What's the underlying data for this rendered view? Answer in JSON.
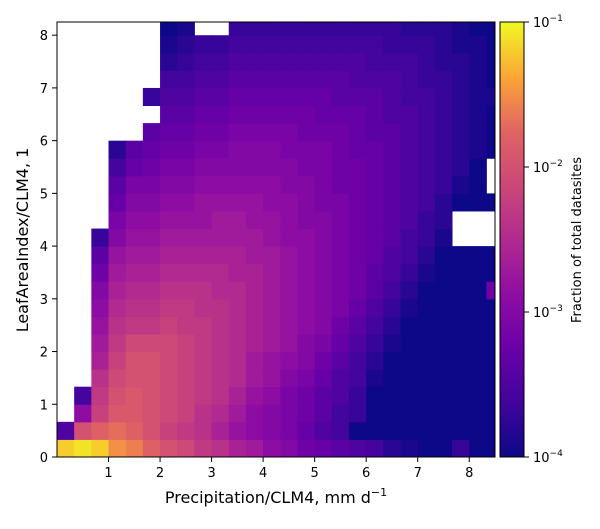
{
  "chart_data": {
    "type": "heatmap",
    "xlabel": "Precipitation/CLM4,  mm d",
    "xlabel_superscript": "−1",
    "ylabel": "LeafAreaIndex/CLM4,  1",
    "colorbar_label": "Fraction of total datasites",
    "colormap": "plasma",
    "colorbar_scale": "log",
    "xlim": [
      0,
      8.5
    ],
    "ylim": [
      0,
      8.25
    ],
    "x_ticks": [
      "1",
      "2",
      "3",
      "4",
      "5",
      "6",
      "7",
      "8"
    ],
    "y_ticks": [
      "0",
      "1",
      "2",
      "3",
      "4",
      "5",
      "6",
      "7",
      "8"
    ],
    "colorbar_ticks": [
      {
        "base": "10",
        "exp": "−4",
        "value": 0.0001
      },
      {
        "base": "10",
        "exp": "−3",
        "value": 0.001
      },
      {
        "base": "10",
        "exp": "−2",
        "value": 0.01
      },
      {
        "base": "10",
        "exp": "−1",
        "value": 0.1
      }
    ],
    "clim": [
      0.0001,
      0.1
    ],
    "bins": {
      "x_start": 0,
      "x_step": 0.3333,
      "nx": 26,
      "y_start": 0,
      "y_step": 0.3333,
      "ny": 25
    },
    "cells_log10_fraction": [
      [
        -1.2,
        -1.1,
        -1.2,
        -1.5,
        -1.6,
        -1.8,
        -2.0,
        -2.1,
        -2.3,
        -2.4,
        -2.6,
        -2.7,
        -2.9,
        -3.0,
        -3.2,
        -3.3,
        -3.4,
        -3.5,
        -3.6,
        -3.8,
        -3.9,
        -4.0,
        -4.0,
        -3.7,
        -4.0,
        -4.0
      ],
      [
        -3.5,
        -2.0,
        -1.8,
        -1.7,
        -1.8,
        -2.0,
        -2.2,
        -2.3,
        -2.4,
        -2.6,
        -2.8,
        -2.9,
        -3.0,
        -3.1,
        -3.3,
        -3.5,
        -3.6,
        -4.0,
        -4.0,
        -4.0,
        -4.0,
        -4.0,
        -4.0,
        -4.0,
        -4.0,
        -4.0
      ],
      [
        null,
        -2.9,
        -2.2,
        -1.9,
        -1.9,
        -2.0,
        -2.1,
        -2.2,
        -2.4,
        -2.5,
        -2.7,
        -2.9,
        -3.0,
        -3.1,
        -3.2,
        -3.4,
        -3.6,
        -3.7,
        -4.0,
        -4.0,
        -4.0,
        -4.0,
        -4.0,
        -4.0,
        -4.0,
        -4.0
      ],
      [
        null,
        -3.6,
        -2.3,
        -2.0,
        -1.9,
        -2.0,
        -2.1,
        -2.2,
        -2.3,
        -2.4,
        -2.6,
        -2.8,
        -2.9,
        -3.1,
        -3.2,
        -3.4,
        -3.5,
        -3.7,
        -4.0,
        -4.0,
        -4.0,
        -4.0,
        -4.0,
        -4.0,
        -4.0,
        -4.0
      ],
      [
        null,
        null,
        -2.4,
        -2.1,
        -2.0,
        -2.0,
        -2.1,
        -2.2,
        -2.3,
        -2.4,
        -2.5,
        -2.7,
        -2.8,
        -3.0,
        -3.1,
        -3.3,
        -3.5,
        -3.6,
        -3.9,
        -4.0,
        -4.0,
        -4.0,
        -4.0,
        -4.0,
        -4.0,
        -4.0
      ],
      [
        null,
        null,
        -2.6,
        -2.2,
        -2.0,
        -2.0,
        -2.1,
        -2.2,
        -2.3,
        -2.4,
        -2.5,
        -2.7,
        -2.8,
        -2.9,
        -3.0,
        -3.2,
        -3.4,
        -3.6,
        -3.8,
        -4.0,
        -4.0,
        -4.0,
        -4.0,
        -4.0,
        -4.0,
        -4.0
      ],
      [
        null,
        null,
        -2.7,
        -2.3,
        -2.1,
        -2.1,
        -2.1,
        -2.2,
        -2.3,
        -2.4,
        -2.5,
        -2.6,
        -2.7,
        -2.8,
        -3.0,
        -3.1,
        -3.3,
        -3.5,
        -3.7,
        -3.9,
        -4.0,
        -4.0,
        -4.0,
        -4.0,
        -4.0,
        -4.0
      ],
      [
        null,
        null,
        -2.8,
        -2.4,
        -2.3,
        -2.3,
        -2.2,
        -2.3,
        -2.3,
        -2.4,
        -2.5,
        -2.6,
        -2.7,
        -2.8,
        -2.9,
        -3.0,
        -3.2,
        -3.4,
        -3.6,
        -3.8,
        -4.0,
        -4.0,
        -4.0,
        -4.0,
        -4.0,
        -4.0
      ],
      [
        null,
        null,
        -2.9,
        -2.5,
        -2.4,
        -2.4,
        -2.3,
        -2.3,
        -2.4,
        -2.4,
        -2.5,
        -2.6,
        -2.7,
        -2.8,
        -2.9,
        -3.0,
        -3.1,
        -3.3,
        -3.5,
        -3.7,
        -3.9,
        -4.0,
        -4.0,
        -4.0,
        -4.0,
        -4.0
      ],
      [
        null,
        null,
        -3.0,
        -2.6,
        -2.5,
        -2.5,
        -2.4,
        -2.4,
        -2.4,
        -2.5,
        -2.5,
        -2.6,
        -2.7,
        -2.8,
        -2.9,
        -3.0,
        -3.1,
        -3.2,
        -3.4,
        -3.6,
        -3.8,
        -4.0,
        -4.0,
        -4.0,
        -4.0,
        -3.2
      ],
      [
        null,
        null,
        -3.2,
        -2.7,
        -2.6,
        -2.6,
        -2.5,
        -2.5,
        -2.5,
        -2.5,
        -2.6,
        -2.6,
        -2.7,
        -2.8,
        -2.9,
        -3.0,
        -3.1,
        -3.2,
        -3.4,
        -3.5,
        -3.7,
        -3.9,
        -4.0,
        -4.0,
        -4.0,
        -4.0
      ],
      [
        null,
        null,
        -3.4,
        -2.8,
        -2.7,
        -2.7,
        -2.6,
        -2.6,
        -2.6,
        -2.6,
        -2.6,
        -2.7,
        -2.7,
        -2.8,
        -2.9,
        -3.0,
        -3.1,
        -3.2,
        -3.3,
        -3.5,
        -3.6,
        -3.8,
        -4.0,
        -4.0,
        -4.0,
        -4.0
      ],
      [
        null,
        null,
        -3.7,
        -3.0,
        -2.8,
        -2.8,
        -2.7,
        -2.7,
        -2.7,
        -2.7,
        -2.7,
        -2.7,
        -2.8,
        -2.9,
        -2.9,
        -3.0,
        -3.1,
        -3.2,
        -3.3,
        -3.4,
        -3.6,
        -3.7,
        -3.9,
        null,
        null,
        null
      ],
      [
        null,
        null,
        null,
        -3.1,
        -2.9,
        -2.9,
        -2.8,
        -2.8,
        -2.8,
        -2.7,
        -2.7,
        -2.8,
        -2.8,
        -2.9,
        -3.0,
        -3.0,
        -3.1,
        -3.2,
        -3.3,
        -3.4,
        -3.5,
        -3.7,
        -3.8,
        null,
        null,
        null
      ],
      [
        null,
        null,
        null,
        -3.3,
        -3.0,
        -3.0,
        -2.9,
        -2.9,
        -2.8,
        -2.8,
        -2.8,
        -2.8,
        -2.9,
        -2.9,
        -3.0,
        -3.1,
        -3.1,
        -3.2,
        -3.3,
        -3.4,
        -3.5,
        -3.6,
        -3.8,
        -4.0,
        -4.0,
        -4.0
      ],
      [
        null,
        null,
        null,
        -3.4,
        -3.1,
        -3.1,
        -3.0,
        -3.0,
        -2.9,
        -2.9,
        -2.9,
        -2.9,
        -2.9,
        -3.0,
        -3.0,
        -3.1,
        -3.2,
        -3.2,
        -3.3,
        -3.4,
        -3.5,
        -3.6,
        -3.7,
        -3.9,
        -4.0,
        null
      ],
      [
        null,
        null,
        null,
        -3.6,
        -3.3,
        -3.2,
        -3.1,
        -3.1,
        -3.0,
        -3.0,
        -3.0,
        -3.0,
        -3.0,
        -3.0,
        -3.1,
        -3.1,
        -3.2,
        -3.2,
        -3.3,
        -3.4,
        -3.5,
        -3.6,
        -3.7,
        -3.8,
        -4.0,
        null
      ],
      [
        null,
        null,
        null,
        -3.8,
        -3.4,
        -3.3,
        -3.2,
        -3.2,
        -3.1,
        -3.1,
        -3.0,
        -3.0,
        -3.0,
        -3.1,
        -3.1,
        -3.1,
        -3.2,
        -3.3,
        -3.3,
        -3.4,
        -3.5,
        -3.6,
        -3.7,
        -3.8,
        -3.9,
        -4.0
      ],
      [
        null,
        null,
        null,
        null,
        null,
        -3.4,
        -3.3,
        -3.3,
        -3.2,
        -3.2,
        -3.1,
        -3.1,
        -3.1,
        -3.1,
        -3.2,
        -3.2,
        -3.2,
        -3.3,
        -3.4,
        -3.4,
        -3.5,
        -3.6,
        -3.7,
        -3.8,
        -3.9,
        -4.0
      ],
      [
        null,
        null,
        null,
        null,
        null,
        null,
        -3.4,
        -3.4,
        -3.3,
        -3.3,
        -3.2,
        -3.2,
        -3.2,
        -3.2,
        -3.2,
        -3.3,
        -3.3,
        -3.3,
        -3.4,
        -3.5,
        -3.5,
        -3.6,
        -3.7,
        -3.8,
        -3.9,
        -4.0
      ],
      [
        null,
        null,
        null,
        null,
        null,
        -3.7,
        -3.5,
        -3.5,
        -3.4,
        -3.4,
        -3.3,
        -3.3,
        -3.3,
        -3.3,
        -3.3,
        -3.3,
        -3.4,
        -3.4,
        -3.4,
        -3.5,
        -3.6,
        -3.6,
        -3.7,
        -3.8,
        -3.9,
        -3.9
      ],
      [
        null,
        null,
        null,
        null,
        null,
        null,
        -3.6,
        -3.6,
        -3.5,
        -3.5,
        -3.4,
        -3.4,
        -3.4,
        -3.4,
        -3.4,
        -3.4,
        -3.4,
        -3.5,
        -3.5,
        -3.5,
        -3.6,
        -3.7,
        -3.7,
        -3.8,
        -3.9,
        -4.0
      ],
      [
        null,
        null,
        null,
        null,
        null,
        null,
        -3.8,
        -3.7,
        -3.6,
        -3.6,
        -3.5,
        -3.5,
        -3.5,
        -3.5,
        -3.5,
        -3.5,
        -3.5,
        -3.5,
        -3.6,
        -3.6,
        -3.6,
        -3.7,
        -3.8,
        -3.8,
        -3.9,
        -4.0
      ],
      [
        null,
        null,
        null,
        null,
        null,
        null,
        -3.9,
        -3.8,
        -3.7,
        -3.7,
        -3.6,
        -3.6,
        -3.6,
        -3.6,
        -3.6,
        -3.6,
        -3.6,
        -3.6,
        -3.6,
        -3.7,
        -3.7,
        -3.7,
        -3.8,
        -3.9,
        -3.9,
        -4.0
      ],
      [
        null,
        null,
        null,
        null,
        null,
        null,
        -4.0,
        -3.9,
        null,
        null,
        -3.7,
        -3.7,
        -3.7,
        -3.7,
        -3.7,
        -3.7,
        -3.7,
        -3.7,
        -3.7,
        -3.7,
        -3.8,
        -3.8,
        -3.8,
        -3.9,
        -4.0,
        -4.0
      ]
    ]
  }
}
